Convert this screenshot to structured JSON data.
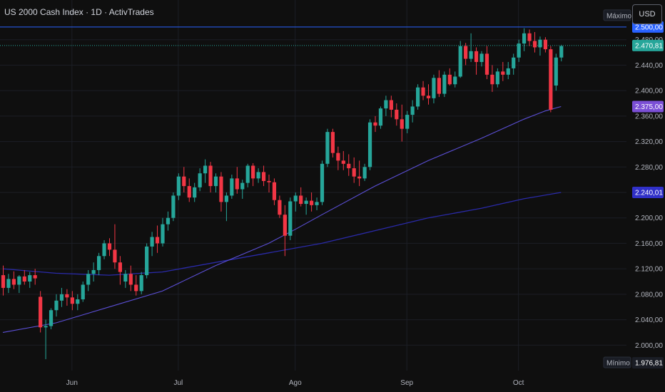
{
  "header": {
    "title": "US 2000 Cash Index · 1D · ActivTrades",
    "currency_button": "USD"
  },
  "colors": {
    "up": "#26a69a",
    "down": "#f23645",
    "ma_fast": "#5b4fd6",
    "ma_slow": "#2a2aa8",
    "level_line": "#2962ff",
    "tag_max": "#2962ff",
    "tag_last": "#26a69a",
    "tag_ma_fast": "#7b4fd6",
    "tag_ma_slow": "#3030c8"
  },
  "chart_data": {
    "type": "candlestick",
    "ylim": [
      1960,
      2520
    ],
    "y_ticks": [
      "2.000,00",
      "2.040,00",
      "2.080,00",
      "2.120,00",
      "2.160,00",
      "2.200,00",
      "2.240,00",
      "2.280,00",
      "2.320,00",
      "2.360,00",
      "2.400,00",
      "2.440,00",
      "2.480,00"
    ],
    "y_tick_values": [
      2000,
      2040,
      2080,
      2120,
      2160,
      2200,
      2240,
      2280,
      2320,
      2360,
      2400,
      2440,
      2480
    ],
    "x_labels": [
      {
        "label": "Jun",
        "index": 13
      },
      {
        "label": "Jul",
        "index": 33
      },
      {
        "label": "Ago",
        "index": 55
      },
      {
        "label": "Sep",
        "index": 76
      },
      {
        "label": "Oct",
        "index": 97
      }
    ],
    "candles": [
      [
        2110,
        2125,
        2078,
        2090
      ],
      [
        2090,
        2112,
        2082,
        2104
      ],
      [
        2104,
        2116,
        2088,
        2095
      ],
      [
        2095,
        2110,
        2082,
        2108
      ],
      [
        2108,
        2118,
        2095,
        2100
      ],
      [
        2100,
        2115,
        2090,
        2110
      ],
      [
        2110,
        2120,
        2095,
        2105
      ],
      [
        2076,
        2085,
        2020,
        2028
      ],
      [
        2028,
        2040,
        1978,
        2030
      ],
      [
        2030,
        2058,
        2025,
        2055
      ],
      [
        2055,
        2080,
        2045,
        2070
      ],
      [
        2070,
        2090,
        2060,
        2080
      ],
      [
        2080,
        2088,
        2062,
        2075
      ],
      [
        2075,
        2085,
        2055,
        2065
      ],
      [
        2065,
        2080,
        2055,
        2072
      ],
      [
        2072,
        2100,
        2068,
        2095
      ],
      [
        2095,
        2118,
        2085,
        2112
      ],
      [
        2112,
        2130,
        2100,
        2118
      ],
      [
        2118,
        2145,
        2110,
        2140
      ],
      [
        2140,
        2165,
        2135,
        2160
      ],
      [
        2160,
        2168,
        2140,
        2150
      ],
      [
        2150,
        2190,
        2120,
        2130
      ],
      [
        2130,
        2140,
        2095,
        2115
      ],
      [
        2100,
        2118,
        2090,
        2112
      ],
      [
        2112,
        2125,
        2085,
        2095
      ],
      [
        2095,
        2110,
        2078,
        2085
      ],
      [
        2085,
        2115,
        2080,
        2110
      ],
      [
        2110,
        2160,
        2105,
        2155
      ],
      [
        2155,
        2178,
        2140,
        2170
      ],
      [
        2170,
        2188,
        2145,
        2160
      ],
      [
        2160,
        2200,
        2155,
        2190
      ],
      [
        2190,
        2210,
        2180,
        2200
      ],
      [
        2200,
        2240,
        2195,
        2235
      ],
      [
        2235,
        2270,
        2228,
        2265
      ],
      [
        2265,
        2280,
        2240,
        2250
      ],
      [
        2250,
        2262,
        2225,
        2232
      ],
      [
        2232,
        2255,
        2225,
        2248
      ],
      [
        2248,
        2278,
        2242,
        2270
      ],
      [
        2270,
        2292,
        2255,
        2282
      ],
      [
        2282,
        2288,
        2240,
        2250
      ],
      [
        2250,
        2270,
        2240,
        2265
      ],
      [
        2265,
        2272,
        2210,
        2225
      ],
      [
        2225,
        2240,
        2195,
        2235
      ],
      [
        2235,
        2268,
        2230,
        2262
      ],
      [
        2262,
        2280,
        2238,
        2245
      ],
      [
        2245,
        2260,
        2230,
        2255
      ],
      [
        2255,
        2285,
        2248,
        2282
      ],
      [
        2282,
        2286,
        2250,
        2262
      ],
      [
        2262,
        2278,
        2255,
        2272
      ],
      [
        2272,
        2282,
        2250,
        2258
      ],
      [
        2258,
        2268,
        2240,
        2256
      ],
      [
        2256,
        2262,
        2220,
        2228
      ],
      [
        2228,
        2235,
        2200,
        2205
      ],
      [
        2205,
        2220,
        2140,
        2172
      ],
      [
        2172,
        2232,
        2165,
        2226
      ],
      [
        2226,
        2240,
        2210,
        2235
      ],
      [
        2235,
        2248,
        2218,
        2222
      ],
      [
        2222,
        2232,
        2205,
        2227
      ],
      [
        2227,
        2240,
        2210,
        2220
      ],
      [
        2220,
        2232,
        2212,
        2225
      ],
      [
        2225,
        2290,
        2220,
        2285
      ],
      [
        2285,
        2340,
        2280,
        2335
      ],
      [
        2335,
        2340,
        2295,
        2302
      ],
      [
        2302,
        2312,
        2275,
        2290
      ],
      [
        2290,
        2305,
        2275,
        2285
      ],
      [
        2285,
        2300,
        2266,
        2278
      ],
      [
        2278,
        2295,
        2255,
        2265
      ],
      [
        2265,
        2290,
        2250,
        2262
      ],
      [
        2262,
        2285,
        2258,
        2280
      ],
      [
        2280,
        2355,
        2275,
        2350
      ],
      [
        2350,
        2360,
        2335,
        2345
      ],
      [
        2345,
        2375,
        2340,
        2372
      ],
      [
        2372,
        2392,
        2360,
        2385
      ],
      [
        2385,
        2392,
        2358,
        2370
      ],
      [
        2370,
        2380,
        2345,
        2355
      ],
      [
        2355,
        2378,
        2320,
        2340
      ],
      [
        2340,
        2368,
        2333,
        2362
      ],
      [
        2362,
        2385,
        2350,
        2375
      ],
      [
        2375,
        2410,
        2370,
        2405
      ],
      [
        2405,
        2415,
        2385,
        2392
      ],
      [
        2392,
        2410,
        2378,
        2388
      ],
      [
        2388,
        2425,
        2380,
        2420
      ],
      [
        2420,
        2432,
        2390,
        2395
      ],
      [
        2395,
        2430,
        2390,
        2425
      ],
      [
        2425,
        2435,
        2408,
        2410
      ],
      [
        2410,
        2430,
        2405,
        2422
      ],
      [
        2422,
        2478,
        2420,
        2470
      ],
      [
        2470,
        2475,
        2440,
        2450
      ],
      [
        2450,
        2490,
        2445,
        2462
      ],
      [
        2462,
        2468,
        2425,
        2445
      ],
      [
        2445,
        2462,
        2438,
        2458
      ],
      [
        2458,
        2470,
        2418,
        2425
      ],
      [
        2425,
        2440,
        2398,
        2410
      ],
      [
        2410,
        2435,
        2405,
        2430
      ],
      [
        2430,
        2445,
        2415,
        2425
      ],
      [
        2425,
        2445,
        2418,
        2435
      ],
      [
        2435,
        2458,
        2425,
        2452
      ],
      [
        2452,
        2480,
        2445,
        2474
      ],
      [
        2474,
        2498,
        2462,
        2490
      ],
      [
        2490,
        2496,
        2470,
        2478
      ],
      [
        2478,
        2492,
        2460,
        2468
      ],
      [
        2468,
        2485,
        2455,
        2480
      ],
      [
        2480,
        2484,
        2460,
        2465
      ],
      [
        2465,
        2470,
        2366,
        2370
      ],
      [
        2408,
        2458,
        2400,
        2452
      ],
      [
        2452,
        2472,
        2446,
        2470
      ]
    ],
    "ma_fast_values": [
      [
        0,
        2020
      ],
      [
        10,
        2035
      ],
      [
        20,
        2060
      ],
      [
        30,
        2085
      ],
      [
        40,
        2125
      ],
      [
        50,
        2160
      ],
      [
        55,
        2182
      ],
      [
        60,
        2205
      ],
      [
        70,
        2250
      ],
      [
        80,
        2290
      ],
      [
        90,
        2325
      ],
      [
        98,
        2355
      ],
      [
        102,
        2368
      ],
      [
        105,
        2375
      ]
    ],
    "ma_slow_values": [
      [
        0,
        2120
      ],
      [
        10,
        2113
      ],
      [
        20,
        2110
      ],
      [
        30,
        2115
      ],
      [
        40,
        2130
      ],
      [
        50,
        2145
      ],
      [
        60,
        2160
      ],
      [
        70,
        2180
      ],
      [
        80,
        2200
      ],
      [
        90,
        2215
      ],
      [
        98,
        2230
      ],
      [
        105,
        2240
      ]
    ],
    "level_line": 2500,
    "price_tags": [
      {
        "value": 2500,
        "text": "2.500,00",
        "color_key": "tag_max"
      },
      {
        "value": 2470.81,
        "text": "2.470,81",
        "color_key": "tag_last"
      },
      {
        "value": 2375,
        "text": "2.375,00",
        "color_key": "tag_ma_fast"
      },
      {
        "value": 2240.01,
        "text": "2.240,01",
        "color_key": "tag_ma_slow"
      }
    ],
    "max_label": "Máximo",
    "min_label": "Mínimo",
    "min_value_text": "1.976,81",
    "current_price": 2470.81
  }
}
